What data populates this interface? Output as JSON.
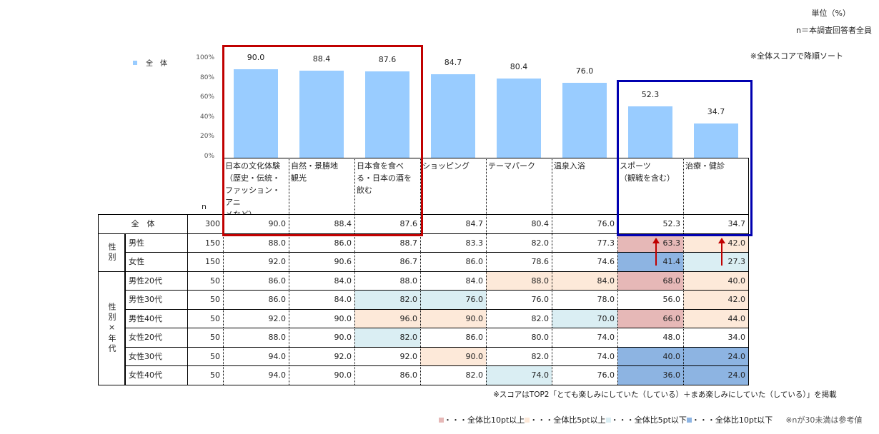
{
  "header": {
    "unit": "単位（%）",
    "base": "n＝本調査回答者全員",
    "sort_note": "※全体スコアで降順ソート"
  },
  "legend_series": "全　体",
  "colors": {
    "bar": "#99ccff",
    "p10": "#e6b8b7",
    "p5": "#fde9d9",
    "m5": "#daeef3",
    "m10": "#8db4e2",
    "red_box": "#c00000",
    "blue_box": "#0000b0",
    "arrow": "#c00000"
  },
  "chart_data": {
    "type": "bar",
    "categories": [
      "日本の文化体験（歴史・伝統・ファッション・アニメなど）",
      "自然・景勝地観光",
      "日本食を食べる・日本の酒を飲む",
      "ショッピング",
      "テーマパーク",
      "温泉入浴",
      "スポーツ（観戦を含む）",
      "治療・健診"
    ],
    "category_lines": [
      [
        "日本の文化体験",
        "（歴史・伝統・",
        "ファッション・アニ",
        "メなど）"
      ],
      [
        "自然・景勝地",
        "観光"
      ],
      [
        "日本食を食べ",
        "る・日本の酒を",
        "飲む"
      ],
      [
        "ショッピング"
      ],
      [
        "テーマパーク"
      ],
      [
        "温泉入浴"
      ],
      [
        "スポーツ",
        "（観戦を含む）"
      ],
      [
        "治療・健診"
      ]
    ],
    "series": [
      {
        "name": "全　体",
        "values": [
          90.0,
          88.4,
          87.6,
          84.7,
          80.4,
          76.0,
          52.3,
          34.7
        ]
      }
    ],
    "yticks": [
      "0%",
      "20%",
      "40%",
      "60%",
      "80%",
      "100%"
    ],
    "ylim": [
      0,
      100
    ]
  },
  "table": {
    "n_label": "n",
    "total": {
      "label": "全　体",
      "n": "300",
      "values": [
        "90.0",
        "88.4",
        "87.6",
        "84.7",
        "80.4",
        "76.0",
        "52.3",
        "34.7"
      ]
    },
    "groups": [
      {
        "label": "性別",
        "rows": [
          0,
          1
        ]
      },
      {
        "label": "性別×年代",
        "rows": [
          2,
          3,
          4,
          5,
          6,
          7
        ]
      }
    ],
    "rows": [
      {
        "label": "男性",
        "n": "150",
        "values": [
          "88.0",
          "86.0",
          "88.7",
          "83.3",
          "82.0",
          "77.3",
          "63.3",
          "42.0"
        ],
        "hl": [
          null,
          null,
          null,
          null,
          null,
          null,
          "p10",
          "p5"
        ]
      },
      {
        "label": "女性",
        "n": "150",
        "values": [
          "92.0",
          "90.6",
          "86.7",
          "86.0",
          "78.6",
          "74.6",
          "41.4",
          "27.3"
        ],
        "hl": [
          null,
          null,
          null,
          null,
          null,
          null,
          "m10",
          "m5"
        ]
      },
      {
        "label": "男性20代",
        "n": "50",
        "values": [
          "86.0",
          "84.0",
          "88.0",
          "84.0",
          "88.0",
          "84.0",
          "68.0",
          "40.0"
        ],
        "hl": [
          null,
          null,
          null,
          null,
          "p5",
          "p5",
          "p10",
          "p5"
        ]
      },
      {
        "label": "男性30代",
        "n": "50",
        "values": [
          "86.0",
          "84.0",
          "82.0",
          "76.0",
          "76.0",
          "78.0",
          "56.0",
          "42.0"
        ],
        "hl": [
          null,
          null,
          "m5",
          "m5",
          null,
          null,
          null,
          "p5"
        ]
      },
      {
        "label": "男性40代",
        "n": "50",
        "values": [
          "92.0",
          "90.0",
          "96.0",
          "90.0",
          "82.0",
          "70.0",
          "66.0",
          "44.0"
        ],
        "hl": [
          null,
          null,
          "p5",
          "p5",
          null,
          "m5",
          "p10",
          "p5"
        ]
      },
      {
        "label": "女性20代",
        "n": "50",
        "values": [
          "88.0",
          "90.0",
          "82.0",
          "86.0",
          "80.0",
          "74.0",
          "48.0",
          "34.0"
        ],
        "hl": [
          null,
          null,
          "m5",
          null,
          null,
          null,
          null,
          null
        ]
      },
      {
        "label": "女性30代",
        "n": "50",
        "values": [
          "94.0",
          "92.0",
          "92.0",
          "90.0",
          "82.0",
          "74.0",
          "40.0",
          "24.0"
        ],
        "hl": [
          null,
          null,
          null,
          "p5",
          null,
          null,
          "m10",
          "m10"
        ]
      },
      {
        "label": "女性40代",
        "n": "50",
        "values": [
          "94.0",
          "90.0",
          "86.0",
          "82.0",
          "74.0",
          "76.0",
          "36.0",
          "24.0"
        ],
        "hl": [
          null,
          null,
          null,
          null,
          "m5",
          null,
          "m10",
          "m10"
        ]
      }
    ]
  },
  "footnote": "※スコアはTOP2「とても楽しみにしていた（している）＋まあ楽しみにしていた（している）」を掲載",
  "legend": [
    {
      "key": "p10",
      "label": "・・・全体比10pt以上"
    },
    {
      "key": "p5",
      "label": "・・・全体比5pt以上"
    },
    {
      "key": "m5",
      "label": "・・・全体比5pt以下"
    },
    {
      "key": "m10",
      "label": "・・・全体比10pt以下"
    }
  ],
  "n_note": "※nが30未満は参考値"
}
